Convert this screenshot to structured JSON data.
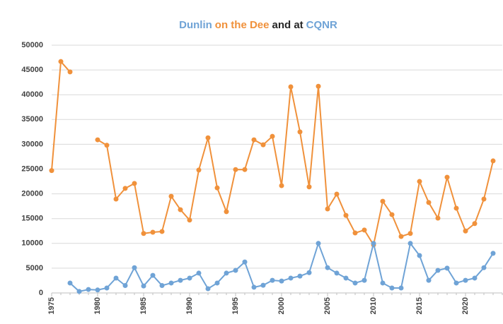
{
  "chart_data": {
    "type": "line",
    "title_parts": [
      {
        "text": "Dunlin",
        "color": "#6fa3d6"
      },
      {
        "text": "on the Dee",
        "color": "#f0913b"
      },
      {
        "text": "and at",
        "color": "#262626"
      },
      {
        "text": "CQNR",
        "color": "#6fa3d6"
      }
    ],
    "x": [
      1975,
      1976,
      1977,
      1978,
      1979,
      1980,
      1981,
      1982,
      1983,
      1984,
      1985,
      1986,
      1987,
      1988,
      1989,
      1990,
      1991,
      1992,
      1993,
      1994,
      1995,
      1996,
      1997,
      1998,
      1999,
      2000,
      2001,
      2002,
      2003,
      2004,
      2005,
      2006,
      2007,
      2008,
      2009,
      2010,
      2011,
      2012,
      2013,
      2014,
      2015,
      2016,
      2017,
      2018,
      2019,
      2020,
      2021,
      2022,
      2023
    ],
    "series": [
      {
        "color": "#f0913b",
        "values": [
          24700,
          46700,
          44600,
          null,
          null,
          30900,
          29800,
          18950,
          21100,
          22100,
          12000,
          12250,
          12400,
          19500,
          16800,
          14700,
          24800,
          31300,
          21200,
          16400,
          24900,
          24900,
          30900,
          29900,
          31600,
          21650,
          41600,
          32500,
          21400,
          41700,
          16950,
          19950,
          15650,
          12100,
          12700,
          9700,
          18500,
          15800,
          11400,
          12000,
          22500,
          18250,
          15100,
          23350,
          17100,
          12500,
          14000,
          18950,
          26650
        ]
      },
      {
        "color": "#6fa3d6",
        "values": [
          null,
          null,
          2000,
          300,
          700,
          600,
          1000,
          3000,
          1500,
          5100,
          1400,
          3550,
          1500,
          2000,
          2550,
          3000,
          4000,
          850,
          2000,
          4000,
          4550,
          6250,
          1150,
          1550,
          2550,
          2400,
          3000,
          3400,
          4100,
          10000,
          5100,
          4000,
          3000,
          2000,
          2550,
          10000,
          2000,
          1000,
          1000,
          10000,
          7550,
          2550,
          4550,
          5000,
          2000,
          2550,
          3000,
          5100,
          8000
        ]
      }
    ],
    "xlim": [
      1975,
      2024
    ],
    "xticks": [
      1975,
      1980,
      1985,
      1990,
      1995,
      2000,
      2005,
      2010,
      2015,
      2020
    ],
    "ylim": [
      0,
      50000
    ],
    "yticks": [
      0,
      5000,
      10000,
      15000,
      20000,
      25000,
      30000,
      35000,
      40000,
      45000,
      50000
    ],
    "grid": true
  }
}
